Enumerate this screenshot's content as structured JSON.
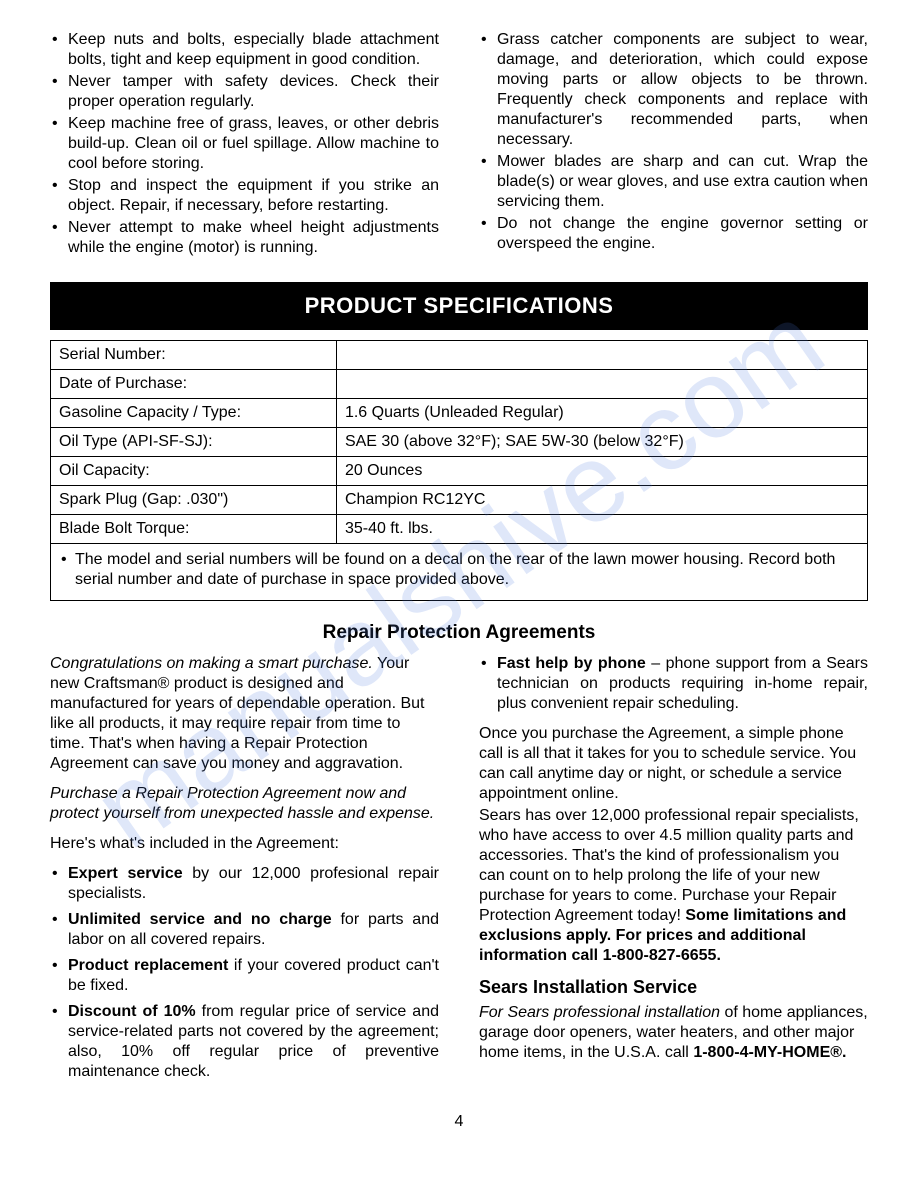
{
  "watermark": "manualshive.com",
  "top_left_bullets": [
    "Keep nuts and bolts, especially blade attachment bolts, tight and keep equipment in good condition.",
    "Never tamper with safety devices. Check their proper operation regularly.",
    "Keep machine free of grass, leaves, or other debris build-up. Clean oil or fuel spillage. Allow machine to cool before storing.",
    "Stop and inspect the equipment if you strike an object. Repair, if necessary, before restarting.",
    "Never attempt to make wheel height adjustments while the engine (motor) is running."
  ],
  "top_right_bullets": [
    "Grass catcher components are subject to wear, damage, and deterioration, which could expose moving parts or allow objects to be thrown. Frequently check components and replace with manufacturer's recommended parts, when necessary.",
    "Mower blades are sharp and can cut. Wrap the blade(s) or wear gloves, and use extra caution when servicing them.",
    "Do not change the engine governor setting or overspeed the engine."
  ],
  "spec_header": "PRODUCT SPECIFICATIONS",
  "spec_rows": [
    {
      "label": "Serial Number:",
      "value": ""
    },
    {
      "label": "Date of Purchase:",
      "value": ""
    },
    {
      "label": "Gasoline Capacity / Type:",
      "value": "1.6 Quarts (Unleaded Regular)"
    },
    {
      "label": "Oil Type (API-SF-SJ):",
      "value": "SAE 30 (above 32°F); SAE 5W-30 (below 32°F)"
    },
    {
      "label": "Oil Capacity:",
      "value": "20 Ounces"
    },
    {
      "label": "Spark Plug (Gap:  .030\")",
      "value": "Champion RC12YC"
    },
    {
      "label": "Blade Bolt Torque:",
      "value": "35-40 ft. lbs."
    }
  ],
  "spec_note": "The model and serial numbers will be found on a decal on the rear of the lawn mower housing.  Record both serial number and date of purchase in space provided above.",
  "rpa_heading": "Repair Protection Agreements",
  "rpa_left": {
    "intro_italic": "Congratulations on making a smart purchase.",
    "intro_rest": " Your new Craftsman® product is designed and manufactured for years of dependable operation. But like all products, it may require repair from time to time. That's when having a Repair Protection Agreement can save you money and aggravation.",
    "purchase_italic": "Purchase a Repair Protection Agreement now and protect yourself from unexpected hassle and expense.",
    "included_line": "Here's what's included in the Agreement:",
    "items": [
      {
        "bold": "Expert service",
        "rest": " by our 12,000 profesional repair specialists."
      },
      {
        "bold": "Unlimited service and no charge",
        "rest": " for parts and labor on all covered repairs."
      },
      {
        "bold": "Product replacement",
        "rest": " if your covered product can't be fixed."
      },
      {
        "bold": "Discount of 10%",
        "rest": " from regular price of service and service-related parts not covered by the agreement; also, 10% off regular price of preventive maintenance check."
      }
    ]
  },
  "rpa_right": {
    "fast_help_bold": "Fast help by phone",
    "fast_help_rest": " – phone support from a Sears technician on products requiring in-home repair, plus convenient repair scheduling.",
    "para1": "Once you purchase the Agreement, a simple phone call is all that it takes for you to schedule service. You can call anytime day or night, or schedule a service appointment online.",
    "para2_a": "Sears has over 12,000 professional repair specialists, who have access to over 4.5 million quality parts and accessories. That's the kind of professionalism you can count on to help prolong the life of your new purchase for years to come. Purchase your Repair Protection Agreement today! ",
    "para2_b_bold": "Some limitations and exclusions apply. For prices and additional information call 1-800-827-6655.",
    "sis_heading": "Sears Installation Service",
    "sis_italic": "For Sears professional installation",
    "sis_rest": " of home appliances, garage door openers, water heaters, and other major home items, in the U.S.A. call ",
    "sis_phone_bold": "1-800-4-MY-HOME®."
  },
  "page_number": "4"
}
